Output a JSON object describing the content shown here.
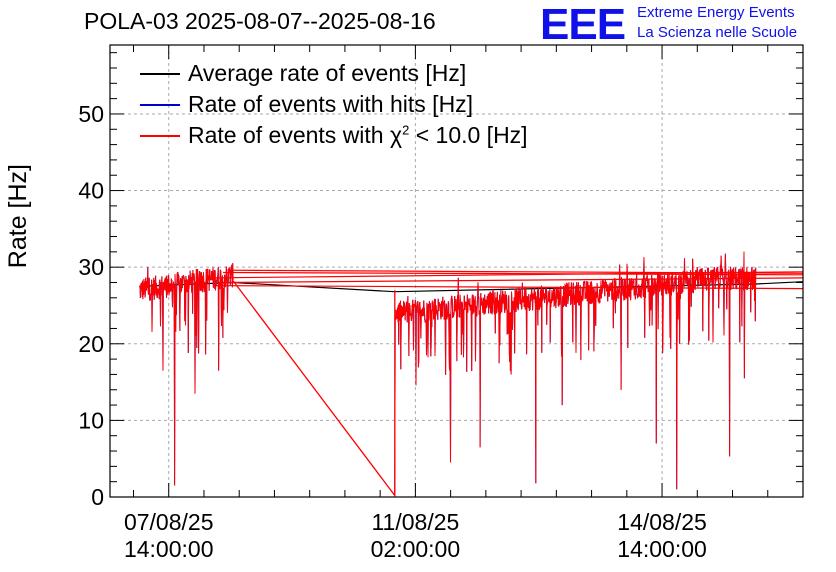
{
  "header": {
    "title": "POLA-03 2025-08-07--2025-08-16",
    "logo": "EEE",
    "logo_line1": "Extreme Energy Events",
    "logo_line2": "La Scienza nelle Scuole"
  },
  "chart_data": {
    "type": "line",
    "ylabel": "Rate [Hz]",
    "ylim": [
      0,
      59
    ],
    "yticks": [
      0,
      10,
      20,
      30,
      40,
      50
    ],
    "xlim_hours": [
      0,
      236
    ],
    "xticks": [
      {
        "date": "07/08/25",
        "time": "14:00:00"
      },
      {
        "date": "11/08/25",
        "time": "02:00:00"
      },
      {
        "date": "14/08/25",
        "time": "14:00:00"
      }
    ],
    "grid": true,
    "legend_position": "top-left",
    "series": [
      {
        "name": "Average rate of events [Hz]",
        "color": "#000000",
        "x_start": "2025-08-07 04:00",
        "x_end": "2025-08-16 08:00",
        "values_approx": [
          27.5,
          28.8,
          29.5,
          29.0,
          26.7,
          24.5,
          26.5,
          27.5,
          28.0,
          28.2
        ]
      },
      {
        "name": "Rate of events with hits [Hz]",
        "color": "#0000cc",
        "values_approx": [
          27.5,
          28.8,
          29.5,
          29.0,
          26.7,
          24.5,
          26.5,
          27.5,
          28.0,
          28.2
        ]
      },
      {
        "name": "Rate of events with χ² < 10.0 [Hz]",
        "color": "#ff0000",
        "values_approx": [
          27.5,
          28.8,
          29.5,
          29.0,
          0.2,
          24.5,
          26.5,
          27.5,
          28.0,
          28.2
        ]
      }
    ]
  },
  "legend": {
    "item1": "Average rate of events [Hz]",
    "item2": "Rate of events with hits [Hz]",
    "item3_pre": "Rate of events with ",
    "item3_chi": "χ",
    "item3_sup": "2",
    "item3_post": " < 10.0 [Hz]"
  }
}
